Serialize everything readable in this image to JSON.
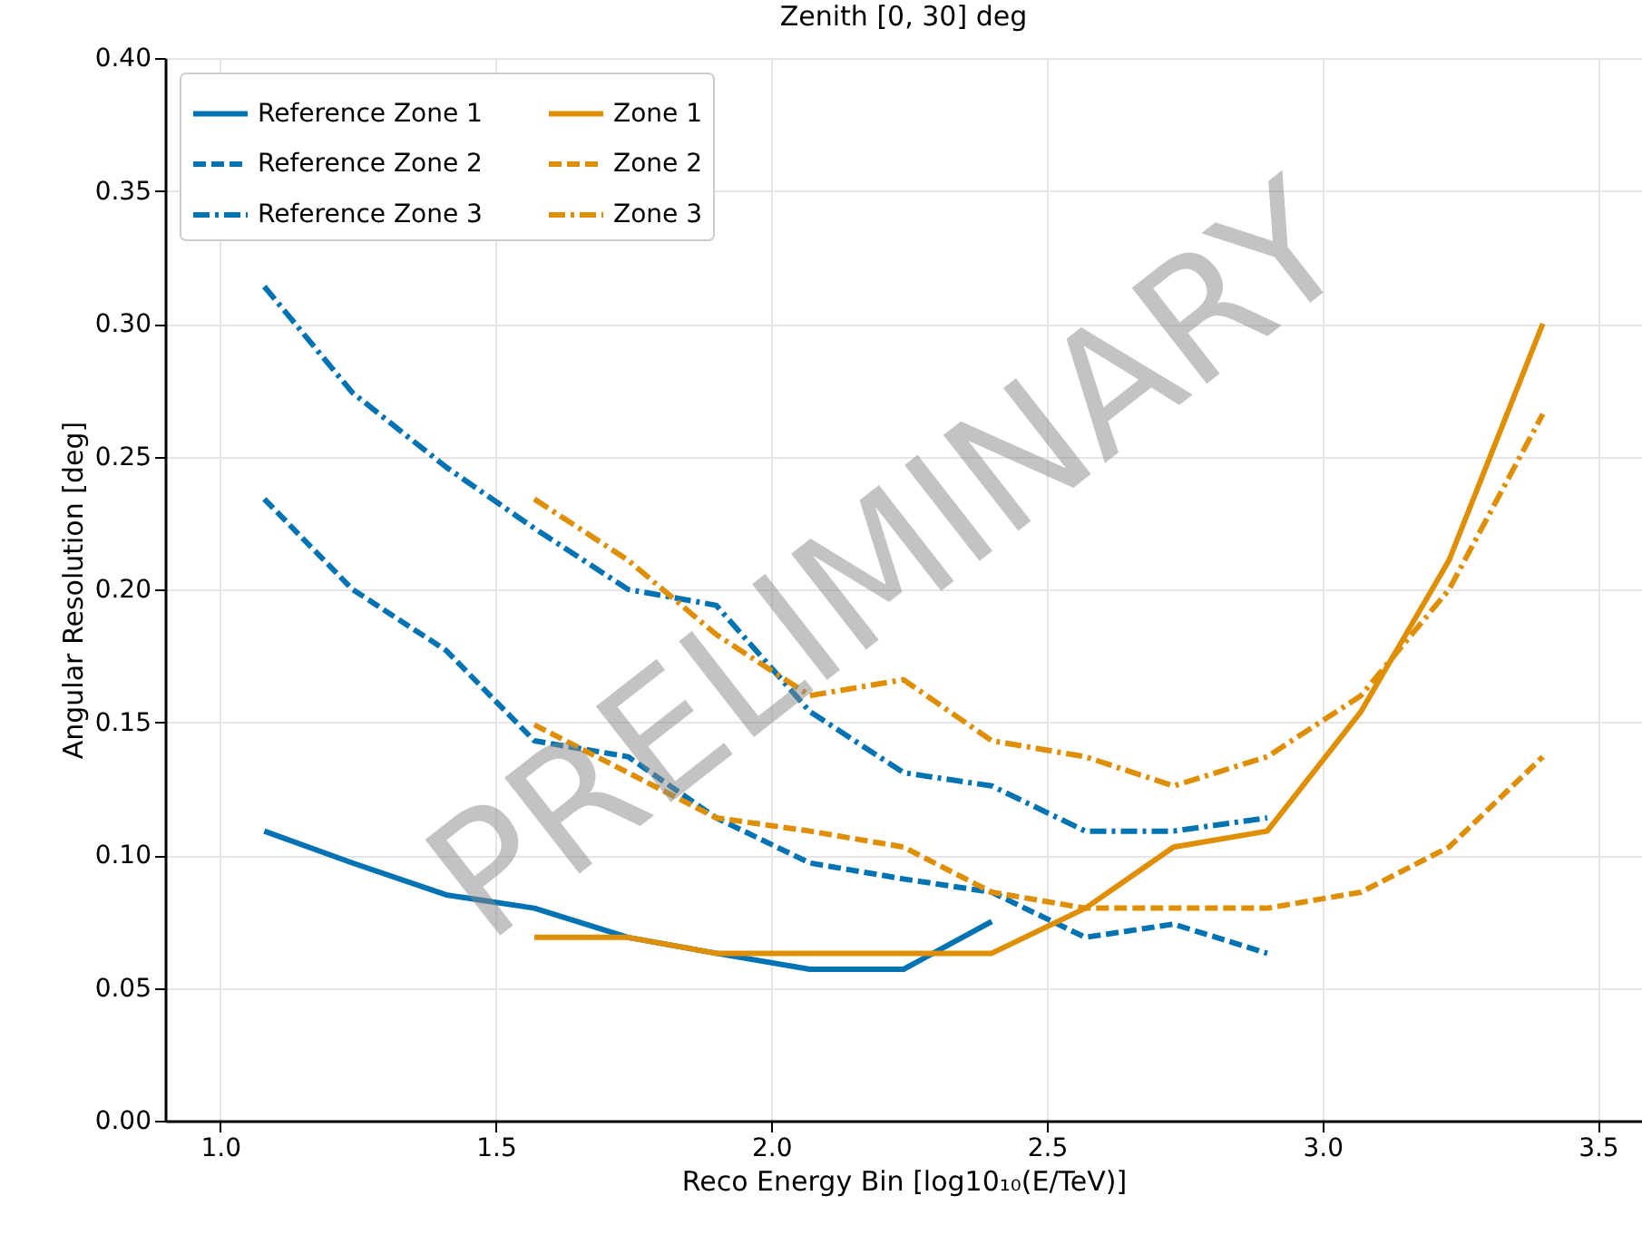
{
  "chart_data": {
    "type": "line",
    "title": "Zenith [0, 30] deg",
    "xlabel": "Reco Energy Bin [log10₁₀(E/TeV)]",
    "ylabel": "Angular Resolution [deg]",
    "annotations": [
      "PRELIMINARY"
    ],
    "xlim": [
      0.9,
      3.58
    ],
    "ylim": [
      0,
      0.4
    ],
    "xticks": [
      {
        "value": 1,
        "label": "1.0"
      },
      1.5,
      {
        "value": 2,
        "label": "2.0"
      },
      2.5,
      {
        "value": 3,
        "label": "3.0"
      },
      3.5
    ],
    "yticks": [
      {
        "value": 0,
        "label": "0.00"
      },
      {
        "value": 0.05,
        "label": "0.05"
      },
      {
        "value": 0.1,
        "label": "0.10"
      },
      {
        "value": 0.15,
        "label": "0.15"
      },
      {
        "value": 0.2,
        "label": "0.20"
      },
      {
        "value": 0.25,
        "label": "0.25"
      },
      {
        "value": 0.3,
        "label": "0.30"
      },
      {
        "value": 0.35,
        "label": "0.35"
      },
      {
        "value": 0.4,
        "label": "0.40"
      }
    ],
    "grid": true,
    "legend": "top left",
    "marker": "none",
    "series": [
      {
        "name": "Reference Zone 1",
        "color": "#0173b2",
        "line_style": "solid",
        "x": [
          1.08,
          1.24,
          1.41,
          1.57,
          1.74,
          1.9,
          2.07,
          2.24,
          2.4
        ],
        "values": [
          0.109,
          0.097,
          0.085,
          0.08,
          0.069,
          0.063,
          0.057,
          0.057,
          0.075
        ]
      },
      {
        "name": "Reference Zone 2",
        "color": "#0173b2",
        "line_style": "dashed",
        "x": [
          1.08,
          1.24,
          1.41,
          1.57,
          1.74,
          1.9,
          2.07,
          2.24,
          2.4,
          2.57,
          2.73,
          2.9
        ],
        "values": [
          0.234,
          0.2,
          0.177,
          0.143,
          0.137,
          0.114,
          0.097,
          0.091,
          0.086,
          0.069,
          0.074,
          0.063
        ]
      },
      {
        "name": "Reference Zone 3",
        "color": "#0173b2",
        "line_style": "dashdot",
        "x": [
          1.08,
          1.24,
          1.41,
          1.57,
          1.74,
          1.9,
          2.07,
          2.24,
          2.4,
          2.57,
          2.73,
          2.9
        ],
        "values": [
          0.314,
          0.274,
          0.246,
          0.223,
          0.2,
          0.194,
          0.154,
          0.131,
          0.126,
          0.109,
          0.109,
          0.114
        ]
      },
      {
        "name": "Zone 1",
        "color": "#de8f05",
        "line_style": "solid",
        "x": [
          1.57,
          1.74,
          1.9,
          2.07,
          2.24,
          2.4,
          2.57,
          2.73,
          2.9,
          3.07,
          3.23,
          3.4
        ],
        "values": [
          0.069,
          0.069,
          0.063,
          0.063,
          0.063,
          0.063,
          0.08,
          0.103,
          0.109,
          0.154,
          0.211,
          0.3
        ]
      },
      {
        "name": "Zone 2",
        "color": "#de8f05",
        "line_style": "dashed",
        "x": [
          1.57,
          1.74,
          1.9,
          2.07,
          2.24,
          2.4,
          2.57,
          2.73,
          2.9,
          3.07,
          3.23,
          3.4
        ],
        "values": [
          0.149,
          0.131,
          0.114,
          0.109,
          0.103,
          0.086,
          0.08,
          0.08,
          0.08,
          0.086,
          0.103,
          0.137
        ]
      },
      {
        "name": "Zone 3",
        "color": "#de8f05",
        "line_style": "dashdot",
        "x": [
          1.57,
          1.74,
          1.9,
          2.07,
          2.24,
          2.4,
          2.57,
          2.73,
          2.9,
          3.07,
          3.23,
          3.4
        ],
        "values": [
          0.234,
          0.211,
          0.183,
          0.16,
          0.166,
          0.143,
          0.137,
          0.126,
          0.137,
          0.16,
          0.2,
          0.266
        ]
      }
    ]
  }
}
